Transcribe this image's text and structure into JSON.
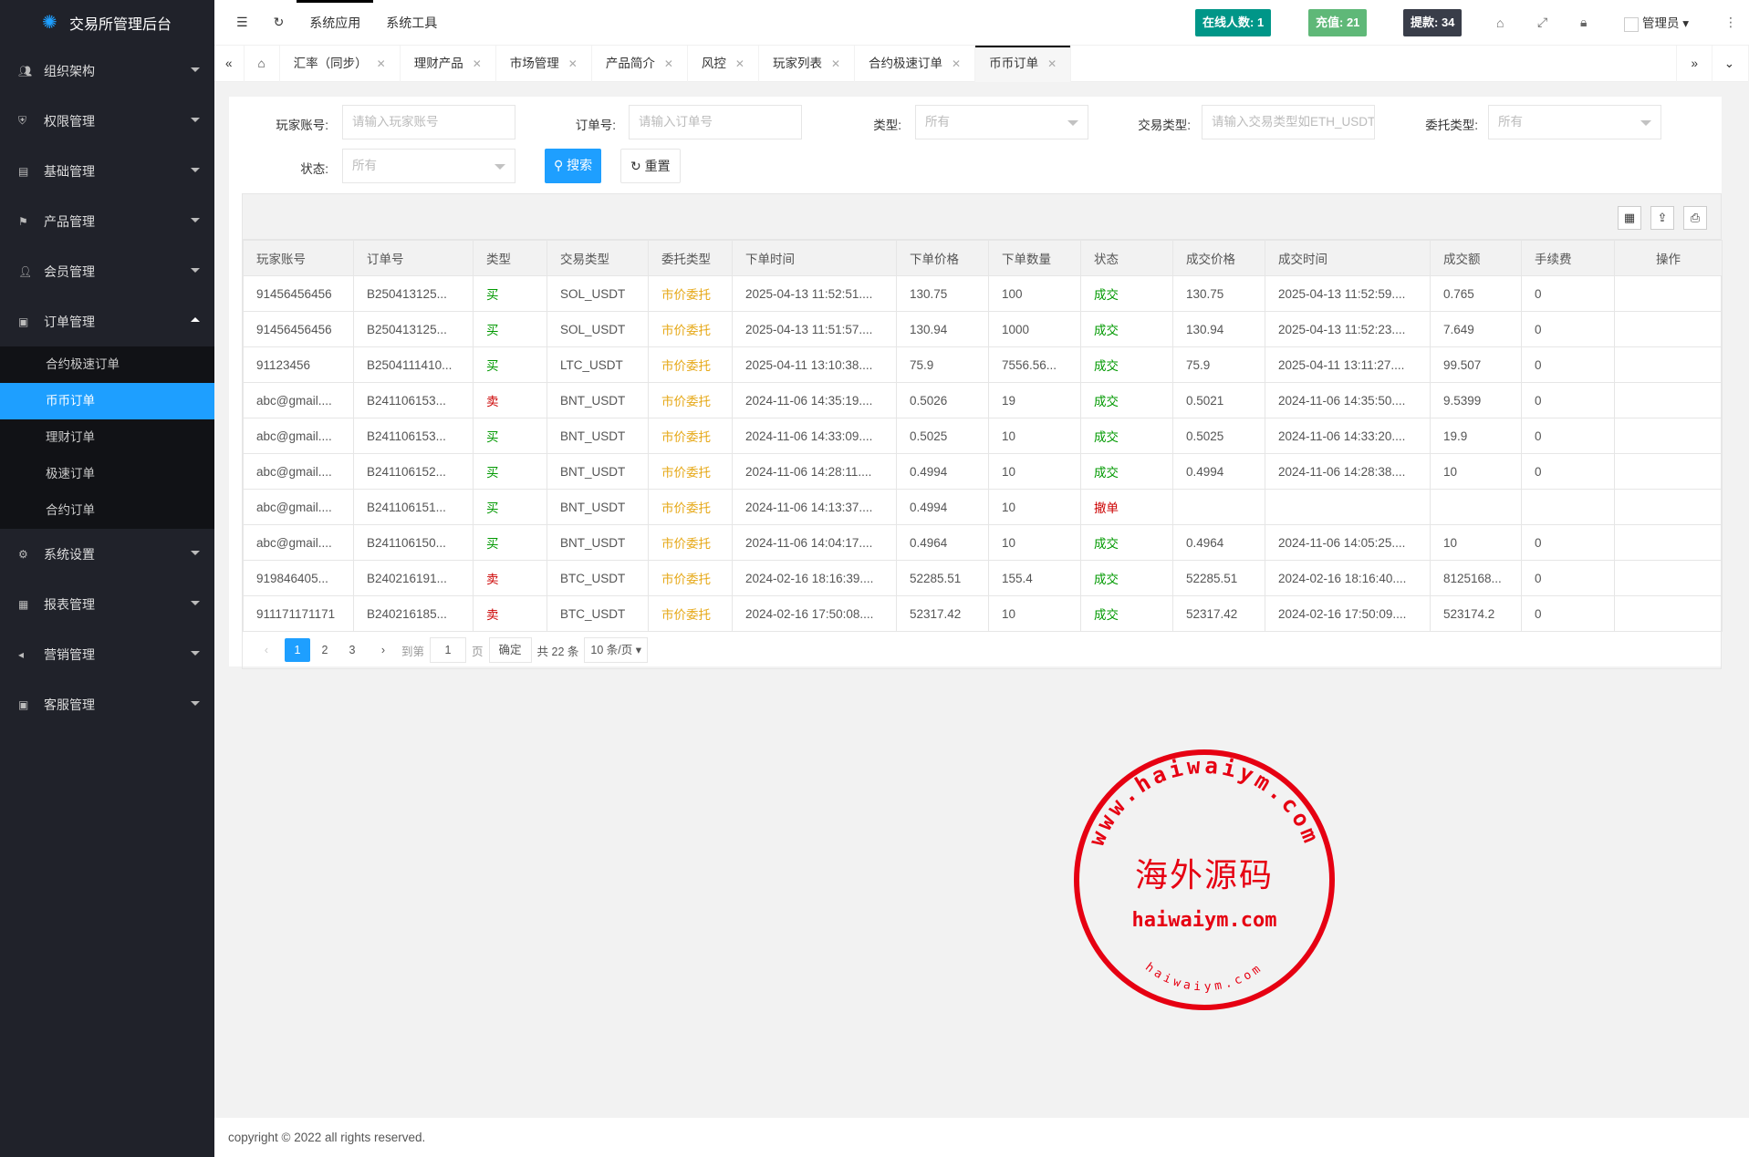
{
  "app": {
    "title": "交易所管理后台"
  },
  "header": {
    "menus": [
      "系统应用",
      "系统工具"
    ],
    "online": "在线人数: 1",
    "recharge": "充值: 21",
    "withdraw": "提款: 34",
    "user": "管理员",
    "colors": {
      "online": "#009688",
      "recharge": "#5fb878",
      "withdraw": "#393d49"
    }
  },
  "sidebar": {
    "items": [
      {
        "label": "组织架构",
        "icon": "users-icon"
      },
      {
        "label": "权限管理",
        "icon": "shield-icon"
      },
      {
        "label": "基础管理",
        "icon": "grid-icon"
      },
      {
        "label": "产品管理",
        "icon": "flag-icon"
      },
      {
        "label": "会员管理",
        "icon": "user-icon"
      },
      {
        "label": "订单管理",
        "icon": "apps-icon",
        "expanded": true,
        "children": [
          "合约极速订单",
          "币币订单",
          "理财订单",
          "极速订单",
          "合约订单"
        ],
        "active_child": "币币订单"
      },
      {
        "label": "系统设置",
        "icon": "gear-icon"
      },
      {
        "label": "报表管理",
        "icon": "chart-icon"
      },
      {
        "label": "营销管理",
        "icon": "speaker-icon"
      },
      {
        "label": "客服管理",
        "icon": "apps-icon"
      }
    ]
  },
  "tabs": [
    {
      "label": "汇率（同步）"
    },
    {
      "label": "理财产品"
    },
    {
      "label": "市场管理"
    },
    {
      "label": "产品简介"
    },
    {
      "label": "风控"
    },
    {
      "label": "玩家列表"
    },
    {
      "label": "合约极速订单"
    },
    {
      "label": "币币订单",
      "active": true
    }
  ],
  "filters": {
    "player": {
      "label": "玩家账号:",
      "placeholder": "请输入玩家账号"
    },
    "order": {
      "label": "订单号:",
      "placeholder": "请输入订单号"
    },
    "type": {
      "label": "类型:",
      "value": "所有"
    },
    "trade_type": {
      "label": "交易类型:",
      "placeholder": "请输入交易类型如ETH_USDT"
    },
    "entrust_type": {
      "label": "委托类型:",
      "value": "所有"
    },
    "status": {
      "label": "状态:",
      "value": "所有"
    },
    "search": "搜索",
    "reset": "重置"
  },
  "table": {
    "columns": [
      "玩家账号",
      "订单号",
      "类型",
      "交易类型",
      "委托类型",
      "下单时间",
      "下单价格",
      "下单数量",
      "状态",
      "成交价格",
      "成交时间",
      "成交额",
      "手续费",
      "操作"
    ],
    "rows": [
      [
        "91456456456",
        "B250413125...",
        "买",
        "SOL_USDT",
        "市价委托",
        "2025-04-13 11:52:51....",
        "130.75",
        "100",
        "成交",
        "130.75",
        "2025-04-13 11:52:59....",
        "0.765",
        "0",
        ""
      ],
      [
        "91456456456",
        "B250413125...",
        "买",
        "SOL_USDT",
        "市价委托",
        "2025-04-13 11:51:57....",
        "130.94",
        "1000",
        "成交",
        "130.94",
        "2025-04-13 11:52:23....",
        "7.649",
        "0",
        ""
      ],
      [
        "91123456",
        "B2504111410...",
        "买",
        "LTC_USDT",
        "市价委托",
        "2025-04-11 13:10:38....",
        "75.9",
        "7556.56...",
        "成交",
        "75.9",
        "2025-04-11 13:11:27....",
        "99.507",
        "0",
        ""
      ],
      [
        "abc@gmail....",
        "B241106153...",
        "卖",
        "BNT_USDT",
        "市价委托",
        "2024-11-06 14:35:19....",
        "0.5026",
        "19",
        "成交",
        "0.5021",
        "2024-11-06 14:35:50....",
        "9.5399",
        "0",
        ""
      ],
      [
        "abc@gmail....",
        "B241106153...",
        "买",
        "BNT_USDT",
        "市价委托",
        "2024-11-06 14:33:09....",
        "0.5025",
        "10",
        "成交",
        "0.5025",
        "2024-11-06 14:33:20....",
        "19.9",
        "0",
        ""
      ],
      [
        "abc@gmail....",
        "B241106152...",
        "买",
        "BNT_USDT",
        "市价委托",
        "2024-11-06 14:28:11....",
        "0.4994",
        "10",
        "成交",
        "0.4994",
        "2024-11-06 14:28:38....",
        "10",
        "0",
        ""
      ],
      [
        "abc@gmail....",
        "B241106151...",
        "买",
        "BNT_USDT",
        "市价委托",
        "2024-11-06 14:13:37....",
        "0.4994",
        "10",
        "撤单",
        "",
        "",
        "",
        "",
        ""
      ],
      [
        "abc@gmail....",
        "B241106150...",
        "买",
        "BNT_USDT",
        "市价委托",
        "2024-11-06 14:04:17....",
        "0.4964",
        "10",
        "成交",
        "0.4964",
        "2024-11-06 14:05:25....",
        "10",
        "0",
        ""
      ],
      [
        "919846405...",
        "B240216191...",
        "卖",
        "BTC_USDT",
        "市价委托",
        "2024-02-16 18:16:39....",
        "52285.51",
        "155.4",
        "成交",
        "52285.51",
        "2024-02-16 18:16:40....",
        "8125168...",
        "0",
        ""
      ],
      [
        "911171171171",
        "B240216185...",
        "卖",
        "BTC_USDT",
        "市价委托",
        "2024-02-16 17:50:08....",
        "52317.42",
        "10",
        "成交",
        "52317.42",
        "2024-02-16 17:50:09....",
        "523174.2",
        "0",
        ""
      ]
    ],
    "colors": {
      "buy": "#009900",
      "sell": "#cc0000",
      "entrust": "#e6a817",
      "done": "#009900",
      "cancel": "#cc0000"
    }
  },
  "pagination": {
    "pages": [
      "1",
      "2",
      "3"
    ],
    "current": "1",
    "goto_label": "到第",
    "goto_value": "1",
    "page_unit": "页",
    "confirm": "确定",
    "total": "共 22 条",
    "page_size": "10 条/页"
  },
  "footer": {
    "copyright": "copyright © 2022 all rights reserved."
  },
  "watermark": {
    "top": "www.haiwaiym.com",
    "center": "海外源码",
    "domain": "haiwaiym.com",
    "bottom": "haiwaiym.com",
    "color": "#e60012"
  }
}
